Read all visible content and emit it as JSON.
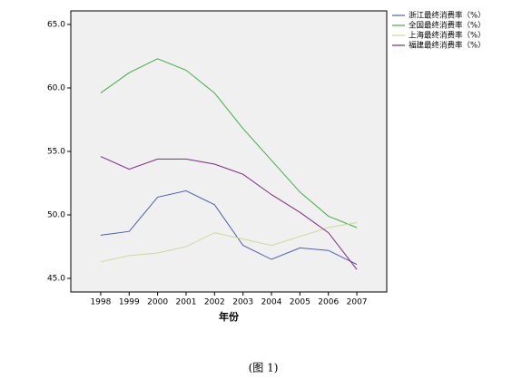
{
  "chart_data": {
    "type": "line",
    "x_label": "年份",
    "caption": "(图 1)",
    "x": [
      1998,
      1999,
      2000,
      2001,
      2002,
      2003,
      2004,
      2005,
      2006,
      2007
    ],
    "xlim": [
      1996.95,
      2008.05
    ],
    "xticks": [
      1998,
      1999,
      2000,
      2001,
      2002,
      2003,
      2004,
      2005,
      2006,
      2007
    ],
    "ylim": [
      43.93,
      66.07
    ],
    "yticks": [
      {
        "value": 45,
        "label": "45.0"
      },
      {
        "value": 50,
        "label": "50.0"
      },
      {
        "value": 55,
        "label": "55.0"
      },
      {
        "value": 60,
        "label": "60.0"
      },
      {
        "value": 65,
        "label": "65.0"
      }
    ],
    "legend": "right",
    "series": [
      {
        "name": "浙江最终消费率（%）",
        "color": "#4a5fb0",
        "values": [
          48.4,
          48.7,
          51.4,
          51.9,
          50.8,
          47.6,
          46.5,
          47.4,
          47.2,
          46.1
        ]
      },
      {
        "name": "全国最终消费率（%）",
        "color": "#3fb13f",
        "values": [
          59.6,
          61.2,
          62.3,
          61.4,
          59.6,
          56.8,
          54.3,
          51.8,
          49.9,
          49.0
        ]
      },
      {
        "name": "上海最终消费率（%）",
        "color": "#c8dc96",
        "values": [
          46.3,
          46.8,
          47.0,
          47.5,
          48.6,
          48.1,
          47.6,
          48.3,
          49.0,
          49.4
        ]
      },
      {
        "name": "福建最终消费率（%）",
        "color": "#7b2a82",
        "values": [
          54.6,
          53.6,
          54.4,
          54.4,
          54.0,
          53.2,
          51.6,
          50.2,
          48.6,
          45.7
        ]
      }
    ]
  }
}
